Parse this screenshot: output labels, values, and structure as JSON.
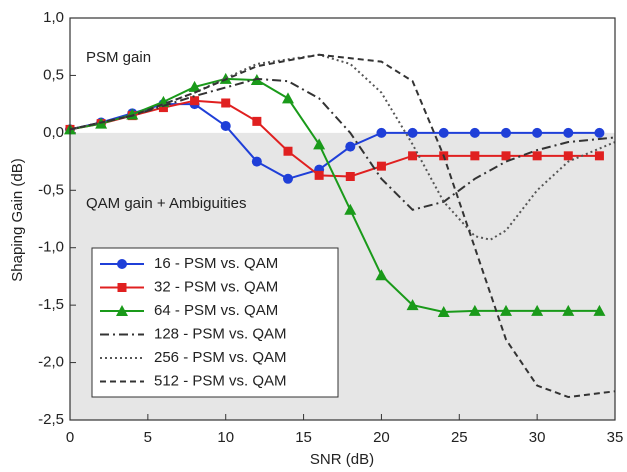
{
  "chart_data": {
    "type": "line",
    "x_label": "SNR (dB)",
    "y_label": "Shaping Gain (dB)",
    "annotations": [
      "PSM gain",
      "QAM gain + Ambiguities"
    ],
    "xlim": [
      0,
      35
    ],
    "xticks": [
      0,
      5,
      10,
      15,
      20,
      25,
      30,
      35
    ],
    "ylim": [
      -2.5,
      1.0
    ],
    "yticks": [
      {
        "value": -2.5,
        "label": "-2,5"
      },
      {
        "value": -2.0,
        "label": "-2,0"
      },
      {
        "value": -1.5,
        "label": "-1,5"
      },
      {
        "value": -1.0,
        "label": "-1,0"
      },
      {
        "value": -0.5,
        "label": "-0,5"
      },
      {
        "value": 0.0,
        "label": "0,0"
      },
      {
        "value": 0.5,
        "label": "0,5"
      },
      {
        "value": 1.0,
        "label": "1,0"
      }
    ],
    "shade_below_zero": true,
    "legend": "lower-left",
    "series": [
      {
        "name": "16 - PSM vs. QAM",
        "color": "#1f3fd8",
        "marker": "circle",
        "dash": "solid",
        "x": [
          0,
          2,
          4,
          6,
          8,
          10,
          12,
          14,
          16,
          18,
          20,
          22,
          24,
          26,
          28,
          30,
          32,
          34
        ],
        "values": [
          0.03,
          0.09,
          0.17,
          0.25,
          0.25,
          0.06,
          -0.25,
          -0.4,
          -0.32,
          -0.12,
          0,
          0,
          0,
          0,
          0,
          0,
          0,
          0
        ]
      },
      {
        "name": "32 - PSM vs. QAM",
        "color": "#e02020",
        "marker": "square",
        "dash": "solid",
        "x": [
          0,
          2,
          4,
          6,
          8,
          10,
          12,
          14,
          16,
          18,
          20,
          22,
          24,
          26,
          28,
          30,
          32,
          34
        ],
        "values": [
          0.03,
          0.08,
          0.15,
          0.22,
          0.28,
          0.26,
          0.1,
          -0.16,
          -0.37,
          -0.38,
          -0.29,
          -0.2,
          -0.2,
          -0.2,
          -0.2,
          -0.2,
          -0.2,
          -0.2
        ]
      },
      {
        "name": "64 - PSM vs. QAM",
        "color": "#1a9a1a",
        "marker": "triangle",
        "dash": "solid",
        "x": [
          0,
          2,
          4,
          6,
          8,
          10,
          12,
          14,
          16,
          18,
          20,
          22,
          24,
          26,
          28,
          30,
          32,
          34
        ],
        "values": [
          0.03,
          0.08,
          0.16,
          0.27,
          0.4,
          0.47,
          0.46,
          0.3,
          -0.1,
          -0.67,
          -1.24,
          -1.5,
          -1.56,
          -1.55,
          -1.55,
          -1.55,
          -1.55,
          -1.55
        ]
      },
      {
        "name": "128 - PSM vs. QAM",
        "color": "#333333",
        "marker": "none",
        "dash": "dashdot",
        "x": [
          0,
          4,
          8,
          12,
          14,
          16,
          18,
          20,
          22,
          24,
          26,
          28,
          30,
          32,
          35
        ],
        "values": [
          0.03,
          0.15,
          0.32,
          0.47,
          0.45,
          0.3,
          0.0,
          -0.4,
          -0.67,
          -0.6,
          -0.4,
          -0.25,
          -0.15,
          -0.08,
          -0.04
        ]
      },
      {
        "name": "256 - PSM vs. QAM",
        "color": "#555555",
        "marker": "none",
        "dash": "dot",
        "x": [
          0,
          4,
          8,
          12,
          16,
          18,
          20,
          22,
          24,
          26,
          27,
          28,
          30,
          32,
          35
        ],
        "values": [
          0.03,
          0.15,
          0.35,
          0.6,
          0.68,
          0.6,
          0.35,
          -0.1,
          -0.6,
          -0.9,
          -0.93,
          -0.85,
          -0.5,
          -0.25,
          -0.08
        ]
      },
      {
        "name": "512 - PSM vs. QAM",
        "color": "#333333",
        "marker": "none",
        "dash": "dash",
        "x": [
          0,
          4,
          8,
          12,
          16,
          20,
          22,
          24,
          26,
          28,
          30,
          32,
          35
        ],
        "values": [
          0.03,
          0.15,
          0.35,
          0.58,
          0.68,
          0.62,
          0.45,
          -0.2,
          -1.0,
          -1.8,
          -2.2,
          -2.3,
          -2.25
        ]
      }
    ]
  }
}
